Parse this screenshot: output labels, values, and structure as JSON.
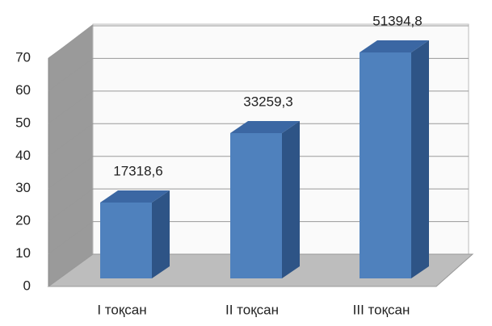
{
  "chart_data": {
    "type": "bar3d",
    "categories": [
      "I тоқсан",
      "II тоқсан",
      "III тоқсан"
    ],
    "values": [
      23.5,
      45,
      70
    ],
    "annotations": [
      "17318,6",
      "33259,3",
      "51394,8"
    ],
    "color": "#4f81bd",
    "ylim": [
      0,
      70
    ],
    "yticks": [
      0,
      10,
      20,
      30,
      40,
      50,
      60,
      70
    ],
    "grid": true
  }
}
